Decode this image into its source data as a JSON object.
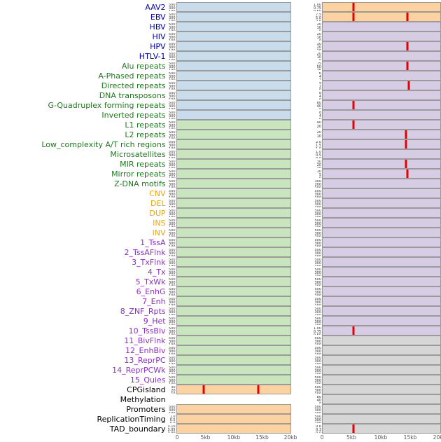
{
  "chart_data": {
    "type": "area",
    "title": "",
    "description": "Genomic feature signal tracks: 44 labeled rows, each with two panels showing signal across a 0-20kb window; red vertical spikes mark signal peaks",
    "x_ticks": [
      "0",
      "5kb",
      "10kb",
      "15kb",
      "20kb"
    ],
    "x_range_kb": [
      0,
      20
    ],
    "legend_position": "none",
    "grid": false,
    "label_colors": {
      "virus": "#0000cc",
      "repeats": "#1c7a1c",
      "sv": "#f0a500",
      "chromatin": "#8b2fc9",
      "annotation": "#000000"
    },
    "panel_fills": {
      "blue": "#c9dcec",
      "green": "#c9e5bd",
      "orange": "#fcd2a0",
      "purple": "#d6cde4",
      "gray": "#d6d6d6",
      "none": "transparent"
    },
    "spike_color": "#e60000",
    "rows": [
      {
        "label": "AAV2",
        "group": "virus",
        "left": {
          "fill": "blue",
          "ticks": [
            "500",
            "300",
            "100"
          ],
          "spikes": []
        },
        "right": {
          "fill": "orange",
          "ticks": [
            "1.00",
            "0.75",
            "0.50",
            "0.25"
          ],
          "spikes": [
            0.26
          ]
        }
      },
      {
        "label": "EBV",
        "group": "virus",
        "left": {
          "fill": "blue",
          "ticks": [
            "500",
            "300",
            "100"
          ],
          "spikes": []
        },
        "right": {
          "fill": "orange",
          "ticks": [
            "7.5",
            "5.0",
            "2.5"
          ],
          "spikes": [
            0.26,
            0.72
          ]
        }
      },
      {
        "label": "HBV",
        "group": "virus",
        "left": {
          "fill": "blue",
          "ticks": [
            "500",
            "300",
            "100"
          ],
          "spikes": []
        },
        "right": {
          "fill": "purple",
          "ticks": [
            "20",
            "10",
            "0"
          ],
          "spikes": []
        }
      },
      {
        "label": "HIV",
        "group": "virus",
        "left": {
          "fill": "blue",
          "ticks": [
            "500",
            "300",
            "100"
          ],
          "spikes": []
        },
        "right": {
          "fill": "purple",
          "ticks": [
            "20",
            "10",
            "0"
          ],
          "spikes": []
        }
      },
      {
        "label": "HPV",
        "group": "virus",
        "left": {
          "fill": "blue",
          "ticks": [
            "500",
            "300",
            "100"
          ],
          "spikes": []
        },
        "right": {
          "fill": "purple",
          "ticks": [
            "30",
            "20",
            "10",
            "0"
          ],
          "spikes": [
            0.72
          ]
        }
      },
      {
        "label": "HTLV-1",
        "group": "virus",
        "left": {
          "fill": "blue",
          "ticks": [
            "500",
            "300",
            "100"
          ],
          "spikes": []
        },
        "right": {
          "fill": "purple",
          "ticks": [
            "20",
            "10",
            "0"
          ],
          "spikes": []
        }
      },
      {
        "label": "Alu repeats",
        "group": "repeats",
        "left": {
          "fill": "blue",
          "ticks": [
            "500",
            "300",
            "100"
          ],
          "spikes": []
        },
        "right": {
          "fill": "purple",
          "ticks": [
            "75",
            "50",
            "25"
          ],
          "spikes": [
            0.72
          ]
        }
      },
      {
        "label": "A-Phased repeats",
        "group": "repeats",
        "left": {
          "fill": "blue",
          "ticks": [
            "500",
            "300",
            "100"
          ],
          "spikes": []
        },
        "right": {
          "fill": "purple",
          "ticks": [
            "6",
            "4",
            "2"
          ],
          "spikes": []
        }
      },
      {
        "label": "Directed repeats",
        "group": "repeats",
        "left": {
          "fill": "blue",
          "ticks": [
            "500",
            "300",
            "100"
          ],
          "spikes": []
        },
        "right": {
          "fill": "purple",
          "ticks": [
            "4",
            "2",
            "0"
          ],
          "spikes": [
            0.73
          ]
        }
      },
      {
        "label": "DNA transposons",
        "group": "repeats",
        "left": {
          "fill": "blue",
          "ticks": [
            "500",
            "300",
            "100"
          ],
          "spikes": []
        },
        "right": {
          "fill": "purple",
          "ticks": [
            "8",
            "4",
            "0"
          ],
          "spikes": []
        }
      },
      {
        "label": "G-Quadruplex forming repeats",
        "group": "repeats",
        "left": {
          "fill": "blue",
          "ticks": [
            "500",
            "300",
            "100"
          ],
          "spikes": []
        },
        "right": {
          "fill": "purple",
          "ticks": [
            "80",
            "40",
            "0"
          ],
          "spikes": [
            0.26
          ]
        }
      },
      {
        "label": "Inverted repeats",
        "group": "repeats",
        "left": {
          "fill": "blue",
          "ticks": [
            "500",
            "300",
            "100"
          ],
          "spikes": []
        },
        "right": {
          "fill": "purple",
          "ticks": [
            "8",
            "4",
            "0"
          ],
          "spikes": []
        }
      },
      {
        "label": "L1 repeats",
        "group": "repeats",
        "left": {
          "fill": "green",
          "ticks": [
            "500",
            "300",
            "100"
          ],
          "spikes": []
        },
        "right": {
          "fill": "purple",
          "ticks": [
            "40",
            "20"
          ],
          "spikes": [
            0.26
          ]
        }
      },
      {
        "label": "L2 repeats",
        "group": "repeats",
        "left": {
          "fill": "green",
          "ticks": [
            "500",
            "300",
            "100"
          ],
          "spikes": []
        },
        "right": {
          "fill": "purple",
          "ticks": [
            "20",
            "10"
          ],
          "spikes": [
            0.71
          ]
        }
      },
      {
        "label": "Low_complexity A/T rich regions",
        "group": "repeats",
        "left": {
          "fill": "green",
          "ticks": [
            "500",
            "300",
            "100"
          ],
          "spikes": []
        },
        "right": {
          "fill": "purple",
          "ticks": [
            "2.0",
            "1.5",
            "1.0",
            "0.5"
          ],
          "spikes": [
            0.71
          ]
        }
      },
      {
        "label": "Microsatellites",
        "group": "repeats",
        "left": {
          "fill": "green",
          "ticks": [
            "500",
            "300",
            "100"
          ],
          "spikes": []
        },
        "right": {
          "fill": "purple",
          "ticks": [
            "1.0",
            "0.5",
            "0.0"
          ],
          "spikes": []
        }
      },
      {
        "label": "MIR repeats",
        "group": "repeats",
        "left": {
          "fill": "green",
          "ticks": [
            "500",
            "300",
            "100"
          ],
          "spikes": []
        },
        "right": {
          "fill": "purple",
          "ticks": [
            "30",
            "20",
            "10"
          ],
          "spikes": [
            0.71
          ]
        }
      },
      {
        "label": "Mirror repeats",
        "group": "repeats",
        "left": {
          "fill": "green",
          "ticks": [
            "500",
            "300",
            "100"
          ],
          "spikes": []
        },
        "right": {
          "fill": "purple",
          "ticks": [
            "10",
            "5",
            "0"
          ],
          "spikes": [
            0.72
          ]
        }
      },
      {
        "label": "Z-DNA motifs",
        "group": "repeats",
        "left": {
          "fill": "green",
          "ticks": [
            "500",
            "300",
            "100"
          ],
          "spikes": []
        },
        "right": {
          "fill": "purple",
          "ticks": [
            "300",
            "200",
            "100"
          ],
          "spikes": []
        }
      },
      {
        "label": "CNV",
        "group": "sv",
        "left": {
          "fill": "green",
          "ticks": [
            "500",
            "300",
            "100"
          ],
          "spikes": []
        },
        "right": {
          "fill": "purple",
          "ticks": [
            "500",
            "300",
            "100"
          ],
          "spikes": []
        }
      },
      {
        "label": "DEL",
        "group": "sv",
        "left": {
          "fill": "green",
          "ticks": [
            "500",
            "300",
            "100"
          ],
          "spikes": []
        },
        "right": {
          "fill": "purple",
          "ticks": [
            "500",
            "300",
            "100"
          ],
          "spikes": []
        }
      },
      {
        "label": "DUP",
        "group": "sv",
        "left": {
          "fill": "green",
          "ticks": [
            "500",
            "300",
            "100"
          ],
          "spikes": []
        },
        "right": {
          "fill": "purple",
          "ticks": [
            "500",
            "300",
            "100"
          ],
          "spikes": []
        }
      },
      {
        "label": "INS",
        "group": "sv",
        "left": {
          "fill": "green",
          "ticks": [
            "500",
            "300",
            "100"
          ],
          "spikes": []
        },
        "right": {
          "fill": "purple",
          "ticks": [
            "500",
            "300",
            "100"
          ],
          "spikes": []
        }
      },
      {
        "label": "INV",
        "group": "sv",
        "left": {
          "fill": "green",
          "ticks": [
            "500",
            "300",
            "100"
          ],
          "spikes": []
        },
        "right": {
          "fill": "purple",
          "ticks": [
            "500",
            "300",
            "100"
          ],
          "spikes": []
        }
      },
      {
        "label": "1_TssA",
        "group": "chromatin",
        "left": {
          "fill": "green",
          "ticks": [
            "500",
            "300",
            "100"
          ],
          "spikes": []
        },
        "right": {
          "fill": "purple",
          "ticks": [
            "500",
            "300",
            "100"
          ],
          "spikes": []
        }
      },
      {
        "label": "2_TssAFlnk",
        "group": "chromatin",
        "left": {
          "fill": "green",
          "ticks": [
            "500",
            "300",
            "100"
          ],
          "spikes": []
        },
        "right": {
          "fill": "purple",
          "ticks": [
            "500",
            "300",
            "100"
          ],
          "spikes": []
        }
      },
      {
        "label": "3_TxFlnk",
        "group": "chromatin",
        "left": {
          "fill": "green",
          "ticks": [
            "500",
            "300",
            "100"
          ],
          "spikes": []
        },
        "right": {
          "fill": "purple",
          "ticks": [
            "500",
            "300",
            "100"
          ],
          "spikes": []
        }
      },
      {
        "label": "4_Tx",
        "group": "chromatin",
        "left": {
          "fill": "green",
          "ticks": [
            "500",
            "300",
            "100"
          ],
          "spikes": []
        },
        "right": {
          "fill": "purple",
          "ticks": [
            "500",
            "300",
            "100"
          ],
          "spikes": []
        }
      },
      {
        "label": "5_TxWk",
        "group": "chromatin",
        "left": {
          "fill": "green",
          "ticks": [
            "500",
            "300",
            "100"
          ],
          "spikes": []
        },
        "right": {
          "fill": "purple",
          "ticks": [
            "500",
            "300",
            "100"
          ],
          "spikes": []
        }
      },
      {
        "label": "6_EnhG",
        "group": "chromatin",
        "left": {
          "fill": "green",
          "ticks": [
            "500",
            "300",
            "100"
          ],
          "spikes": []
        },
        "right": {
          "fill": "purple",
          "ticks": [
            "500",
            "300",
            "100"
          ],
          "spikes": []
        }
      },
      {
        "label": "7_Enh",
        "group": "chromatin",
        "left": {
          "fill": "green",
          "ticks": [
            "500",
            "300",
            "100"
          ],
          "spikes": []
        },
        "right": {
          "fill": "purple",
          "ticks": [
            "500",
            "300",
            "100"
          ],
          "spikes": []
        }
      },
      {
        "label": "8_ZNF_Rpts",
        "group": "chromatin",
        "left": {
          "fill": "green",
          "ticks": [
            "500",
            "300",
            "100"
          ],
          "spikes": []
        },
        "right": {
          "fill": "purple",
          "ticks": [
            "500",
            "300",
            "100"
          ],
          "spikes": []
        }
      },
      {
        "label": "9_Het",
        "group": "chromatin",
        "left": {
          "fill": "green",
          "ticks": [
            "500",
            "300",
            "100"
          ],
          "spikes": []
        },
        "right": {
          "fill": "purple",
          "ticks": [
            "500",
            "300",
            "100"
          ],
          "spikes": []
        }
      },
      {
        "label": "10_TssBiv",
        "group": "chromatin",
        "left": {
          "fill": "green",
          "ticks": [
            "500",
            "300",
            "100"
          ],
          "spikes": []
        },
        "right": {
          "fill": "purple",
          "ticks": [
            "1.00",
            "0.75",
            "0.50",
            "0.25"
          ],
          "spikes": [
            0.26
          ]
        }
      },
      {
        "label": "11_BivFlnk",
        "group": "chromatin",
        "left": {
          "fill": "green",
          "ticks": [
            "500",
            "300",
            "100"
          ],
          "spikes": []
        },
        "right": {
          "fill": "gray",
          "ticks": [
            "500",
            "300",
            "100"
          ],
          "spikes": []
        }
      },
      {
        "label": "12_EnhBiv",
        "group": "chromatin",
        "left": {
          "fill": "green",
          "ticks": [
            "500",
            "300",
            "100"
          ],
          "spikes": []
        },
        "right": {
          "fill": "gray",
          "ticks": [
            "500",
            "300",
            "100"
          ],
          "spikes": []
        }
      },
      {
        "label": "13_ReprPC",
        "group": "chromatin",
        "left": {
          "fill": "green",
          "ticks": [
            "500",
            "300",
            "100"
          ],
          "spikes": []
        },
        "right": {
          "fill": "gray",
          "ticks": [
            "500",
            "300",
            "100"
          ],
          "spikes": []
        }
      },
      {
        "label": "14_ReprPCWk",
        "group": "chromatin",
        "left": {
          "fill": "green",
          "ticks": [
            "500",
            "300",
            "100"
          ],
          "spikes": []
        },
        "right": {
          "fill": "gray",
          "ticks": [
            "500",
            "300",
            "100"
          ],
          "spikes": []
        }
      },
      {
        "label": "15_Quies",
        "group": "chromatin",
        "left": {
          "fill": "green",
          "ticks": [
            "500",
            "300",
            "100"
          ],
          "spikes": []
        },
        "right": {
          "fill": "gray",
          "ticks": [
            "500",
            "300",
            "100"
          ],
          "spikes": []
        }
      },
      {
        "label": "CPGisland",
        "group": "annotation",
        "left": {
          "fill": "orange",
          "ticks": [
            "30",
            "20",
            "10"
          ],
          "spikes": [
            0.24,
            0.72
          ]
        },
        "right": {
          "fill": "gray",
          "ticks": [
            "500",
            "300",
            "100"
          ],
          "spikes": []
        }
      },
      {
        "label": "Methylation",
        "group": "annotation",
        "left": {
          "fill": "none",
          "ticks": [],
          "spikes": []
        },
        "right": {
          "fill": "gray",
          "ticks": [
            "80",
            "40",
            "0"
          ],
          "spikes": []
        }
      },
      {
        "label": "Promoters",
        "group": "annotation",
        "left": {
          "fill": "orange",
          "ticks": [
            "500",
            "300",
            "100"
          ],
          "spikes": []
        },
        "right": {
          "fill": "gray",
          "ticks": [
            "500",
            "300",
            "100"
          ],
          "spikes": []
        }
      },
      {
        "label": "ReplicationTiming",
        "group": "annotation",
        "left": {
          "fill": "orange",
          "ticks": [
            "1.0",
            "0.5",
            "0.0"
          ],
          "spikes": []
        },
        "right": {
          "fill": "gray",
          "ticks": [
            "500",
            "300",
            "100"
          ],
          "spikes": []
        }
      },
      {
        "label": "TAD_boundary",
        "group": "annotation",
        "left": {
          "fill": "orange",
          "ticks": [
            "0.10",
            "0.05",
            "0.00"
          ],
          "spikes": []
        },
        "right": {
          "fill": "gray",
          "ticks": [
            "0.6",
            "0.3",
            "0.0"
          ],
          "spikes": [
            0.26
          ]
        }
      }
    ]
  }
}
